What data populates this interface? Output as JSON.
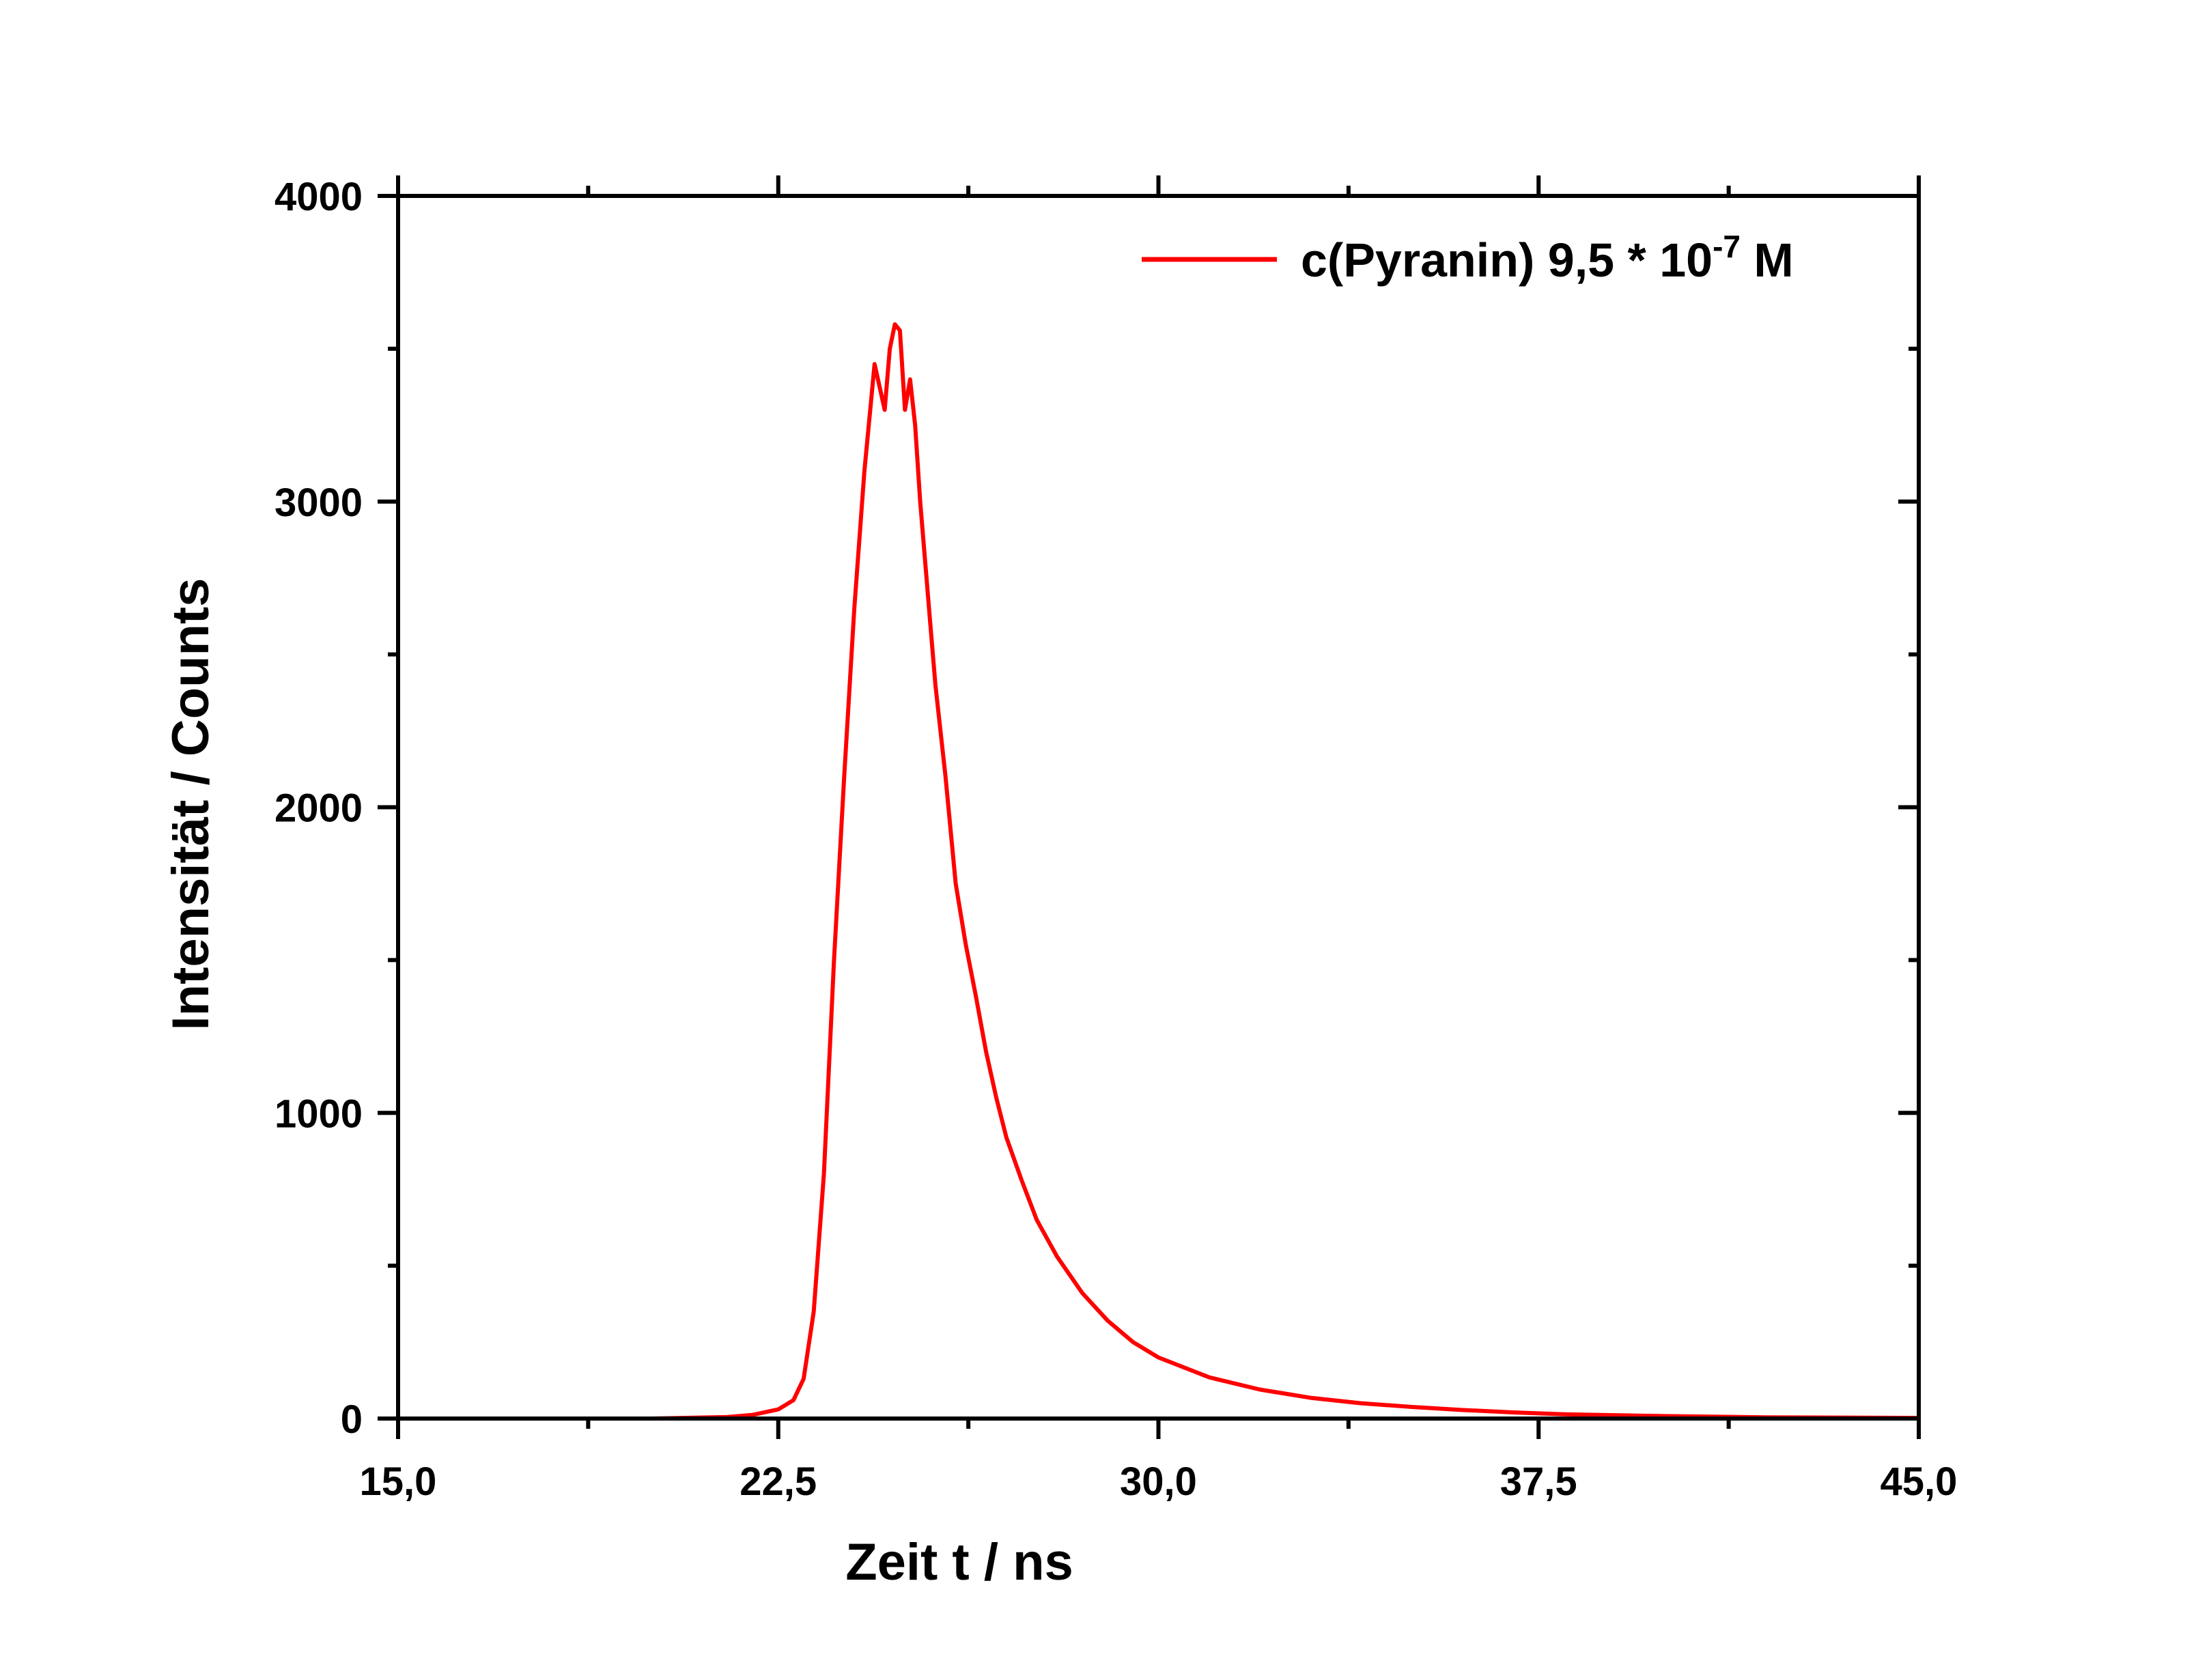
{
  "chart_data": {
    "type": "line",
    "xlabel": "Zeit t / ns",
    "ylabel": "Intensität / Counts",
    "xlim": [
      15.0,
      45.0
    ],
    "ylim": [
      0,
      4000
    ],
    "x_ticks": [
      15.0,
      22.5,
      30.0,
      37.5,
      45.0
    ],
    "x_tick_labels": [
      "15,0",
      "22,5",
      "30,0",
      "37,5",
      "45,0"
    ],
    "y_ticks": [
      0,
      1000,
      2000,
      3000,
      4000
    ],
    "y_tick_labels": [
      "0",
      "1000",
      "2000",
      "3000",
      "4000"
    ],
    "grid": false,
    "legend_position": "top-right",
    "series": [
      {
        "name": "c(Pyranin) 9,5 * 10-7 M",
        "color": "#ff0000",
        "x": [
          15.0,
          20.0,
          21.5,
          22.0,
          22.5,
          22.8,
          23.0,
          23.2,
          23.4,
          23.6,
          23.8,
          24.0,
          24.2,
          24.4,
          24.6,
          24.7,
          24.8,
          24.9,
          25.0,
          25.1,
          25.2,
          25.3,
          25.4,
          25.5,
          25.6,
          25.8,
          26.0,
          26.2,
          26.4,
          26.6,
          26.8,
          27.0,
          27.3,
          27.6,
          28.0,
          28.5,
          29.0,
          29.5,
          30.0,
          31.0,
          32.0,
          33.0,
          34.0,
          35.0,
          36.0,
          37.0,
          38.0,
          40.0,
          42.0,
          45.0
        ],
        "y": [
          0,
          0,
          5,
          12,
          30,
          60,
          130,
          350,
          800,
          1500,
          2100,
          2650,
          3100,
          3450,
          3300,
          3500,
          3580,
          3560,
          3300,
          3400,
          3250,
          3000,
          2800,
          2600,
          2400,
          2100,
          1750,
          1550,
          1380,
          1200,
          1050,
          920,
          780,
          650,
          530,
          410,
          320,
          250,
          200,
          135,
          95,
          68,
          50,
          38,
          28,
          20,
          14,
          8,
          4,
          2
        ]
      }
    ]
  },
  "legend": {
    "label_main": "c(Pyranin) 9,5 * 10",
    "label_sup": "-7",
    "label_unit": " M"
  }
}
